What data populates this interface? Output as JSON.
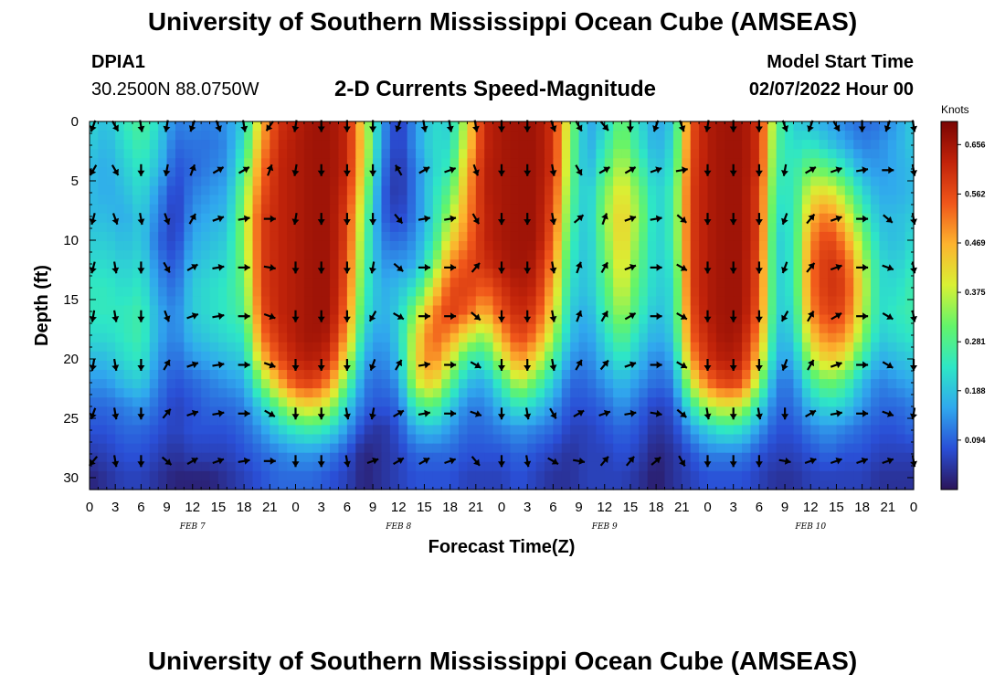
{
  "header": {
    "title": "University of Southern Mississippi Ocean Cube (AMSEAS)",
    "station_id": "DPIA1",
    "coordinates": "30.2500N  88.0750W",
    "subtitle": "2-D Currents Speed-Magnitude",
    "start_time_label": "Model Start Time",
    "start_time_value": "02/07/2022 Hour 00"
  },
  "footer": {
    "title": "University of Southern Mississippi Ocean Cube (AMSEAS)"
  },
  "chart_data": {
    "type": "heatmap",
    "title": "2-D Currents Speed-Magnitude",
    "xlabel": "Forecast Time(Z)",
    "ylabel": "Depth (ft)",
    "x_hours_range": [
      0,
      96
    ],
    "y_range_ft": [
      0,
      31
    ],
    "x_tick_labels": [
      "0",
      "3",
      "6",
      "9",
      "12",
      "15",
      "18",
      "21",
      "0",
      "3",
      "6",
      "9",
      "12",
      "15",
      "18",
      "21",
      "0",
      "3",
      "6",
      "9",
      "12",
      "15",
      "18",
      "21",
      "0",
      "3",
      "6",
      "9",
      "12",
      "15",
      "18",
      "21",
      "0"
    ],
    "y_ticks": [
      0,
      5,
      10,
      15,
      20,
      25,
      30
    ],
    "date_labels": [
      {
        "label": "FEB 7",
        "hour": 12
      },
      {
        "label": "FEB 8",
        "hour": 36
      },
      {
        "label": "FEB 9",
        "hour": 60
      },
      {
        "label": "FEB 10",
        "hour": 84
      }
    ],
    "colorbar": {
      "title": "Knots",
      "min": 0.0,
      "max": 0.7,
      "tick_labels": [
        "0.656",
        "0.562",
        "0.469",
        "0.375",
        "0.281",
        "0.188",
        "0.094"
      ],
      "colors": [
        "#2b1459",
        "#2a4fd6",
        "#30a8ee",
        "#2ee6c6",
        "#63f46a",
        "#d9f034",
        "#fdb32e",
        "#f0561a",
        "#c1230a",
        "#7a0403"
      ]
    },
    "time_hours": [
      0,
      2,
      4,
      6,
      8,
      10,
      12,
      14,
      16,
      18,
      20,
      22,
      24,
      26,
      28,
      30,
      32,
      34,
      36,
      38,
      40,
      42,
      44,
      46,
      48,
      50,
      52,
      54,
      56,
      58,
      60,
      62,
      64,
      66,
      68,
      70,
      72,
      74,
      76,
      78,
      80,
      82,
      84,
      86,
      88,
      90,
      92,
      94,
      96
    ],
    "depth_ft": [
      0,
      2,
      4,
      6,
      8,
      10,
      12,
      14,
      16,
      18,
      20,
      22,
      24,
      26,
      28,
      30
    ],
    "speed_knots": [
      [
        0.22,
        0.18,
        0.24,
        0.28,
        0.22,
        0.12,
        0.13,
        0.12,
        0.14,
        0.2,
        0.45,
        0.6,
        0.63,
        0.66,
        0.66,
        0.62,
        0.4,
        0.15,
        0.05,
        0.14,
        0.22,
        0.2,
        0.4,
        0.62,
        0.65,
        0.66,
        0.66,
        0.6,
        0.35,
        0.15,
        0.2,
        0.32,
        0.22,
        0.15,
        0.2,
        0.55,
        0.64,
        0.66,
        0.66,
        0.6,
        0.3,
        0.2,
        0.18,
        0.15,
        0.12,
        0.1,
        0.11,
        0.15,
        0.2
      ],
      [
        0.2,
        0.17,
        0.22,
        0.26,
        0.2,
        0.1,
        0.11,
        0.11,
        0.13,
        0.24,
        0.48,
        0.61,
        0.64,
        0.66,
        0.66,
        0.62,
        0.42,
        0.14,
        0.05,
        0.14,
        0.22,
        0.22,
        0.42,
        0.62,
        0.65,
        0.66,
        0.66,
        0.6,
        0.33,
        0.15,
        0.24,
        0.34,
        0.24,
        0.16,
        0.22,
        0.56,
        0.64,
        0.66,
        0.66,
        0.6,
        0.28,
        0.22,
        0.24,
        0.2,
        0.16,
        0.12,
        0.13,
        0.16,
        0.2
      ],
      [
        0.18,
        0.16,
        0.2,
        0.24,
        0.18,
        0.08,
        0.1,
        0.12,
        0.14,
        0.28,
        0.52,
        0.62,
        0.64,
        0.66,
        0.66,
        0.62,
        0.4,
        0.12,
        0.04,
        0.12,
        0.21,
        0.25,
        0.46,
        0.63,
        0.65,
        0.66,
        0.66,
        0.6,
        0.32,
        0.16,
        0.28,
        0.38,
        0.28,
        0.18,
        0.24,
        0.57,
        0.64,
        0.66,
        0.66,
        0.6,
        0.26,
        0.24,
        0.32,
        0.3,
        0.24,
        0.16,
        0.14,
        0.16,
        0.18
      ],
      [
        0.18,
        0.16,
        0.18,
        0.22,
        0.14,
        0.06,
        0.12,
        0.14,
        0.16,
        0.32,
        0.55,
        0.62,
        0.64,
        0.66,
        0.66,
        0.6,
        0.36,
        0.1,
        0.04,
        0.12,
        0.22,
        0.3,
        0.48,
        0.63,
        0.65,
        0.66,
        0.66,
        0.58,
        0.3,
        0.18,
        0.32,
        0.42,
        0.32,
        0.2,
        0.26,
        0.58,
        0.64,
        0.66,
        0.66,
        0.58,
        0.24,
        0.24,
        0.4,
        0.42,
        0.34,
        0.22,
        0.16,
        0.16,
        0.18
      ],
      [
        0.18,
        0.18,
        0.16,
        0.2,
        0.12,
        0.05,
        0.14,
        0.16,
        0.18,
        0.34,
        0.58,
        0.62,
        0.64,
        0.66,
        0.66,
        0.58,
        0.32,
        0.1,
        0.06,
        0.12,
        0.22,
        0.36,
        0.5,
        0.62,
        0.65,
        0.66,
        0.66,
        0.56,
        0.28,
        0.18,
        0.34,
        0.44,
        0.34,
        0.2,
        0.26,
        0.58,
        0.64,
        0.66,
        0.66,
        0.58,
        0.22,
        0.24,
        0.46,
        0.52,
        0.42,
        0.28,
        0.18,
        0.18,
        0.2
      ],
      [
        0.2,
        0.2,
        0.18,
        0.2,
        0.1,
        0.06,
        0.16,
        0.18,
        0.2,
        0.34,
        0.58,
        0.62,
        0.64,
        0.66,
        0.66,
        0.58,
        0.3,
        0.12,
        0.1,
        0.14,
        0.24,
        0.42,
        0.52,
        0.62,
        0.65,
        0.66,
        0.66,
        0.54,
        0.26,
        0.18,
        0.32,
        0.44,
        0.32,
        0.2,
        0.26,
        0.58,
        0.64,
        0.66,
        0.66,
        0.58,
        0.2,
        0.24,
        0.5,
        0.58,
        0.5,
        0.34,
        0.2,
        0.18,
        0.22
      ],
      [
        0.22,
        0.22,
        0.2,
        0.22,
        0.12,
        0.08,
        0.18,
        0.2,
        0.22,
        0.32,
        0.58,
        0.62,
        0.64,
        0.66,
        0.66,
        0.56,
        0.28,
        0.14,
        0.14,
        0.16,
        0.3,
        0.5,
        0.56,
        0.6,
        0.64,
        0.66,
        0.64,
        0.5,
        0.24,
        0.18,
        0.3,
        0.42,
        0.3,
        0.2,
        0.24,
        0.58,
        0.64,
        0.66,
        0.66,
        0.56,
        0.2,
        0.24,
        0.52,
        0.6,
        0.56,
        0.38,
        0.22,
        0.2,
        0.24
      ],
      [
        0.24,
        0.24,
        0.22,
        0.24,
        0.14,
        0.1,
        0.2,
        0.22,
        0.24,
        0.3,
        0.58,
        0.62,
        0.64,
        0.66,
        0.66,
        0.55,
        0.26,
        0.16,
        0.18,
        0.24,
        0.4,
        0.56,
        0.58,
        0.54,
        0.6,
        0.64,
        0.62,
        0.46,
        0.22,
        0.18,
        0.28,
        0.4,
        0.28,
        0.2,
        0.22,
        0.58,
        0.64,
        0.66,
        0.66,
        0.56,
        0.2,
        0.24,
        0.52,
        0.6,
        0.58,
        0.4,
        0.22,
        0.22,
        0.26
      ],
      [
        0.24,
        0.24,
        0.24,
        0.26,
        0.16,
        0.12,
        0.2,
        0.22,
        0.24,
        0.28,
        0.56,
        0.62,
        0.64,
        0.66,
        0.66,
        0.52,
        0.24,
        0.16,
        0.2,
        0.34,
        0.5,
        0.58,
        0.54,
        0.46,
        0.56,
        0.62,
        0.58,
        0.42,
        0.2,
        0.16,
        0.26,
        0.36,
        0.26,
        0.18,
        0.22,
        0.56,
        0.64,
        0.66,
        0.66,
        0.54,
        0.2,
        0.22,
        0.5,
        0.58,
        0.56,
        0.38,
        0.22,
        0.24,
        0.26
      ],
      [
        0.22,
        0.22,
        0.24,
        0.26,
        0.16,
        0.12,
        0.18,
        0.2,
        0.22,
        0.24,
        0.52,
        0.6,
        0.64,
        0.66,
        0.64,
        0.48,
        0.2,
        0.14,
        0.2,
        0.4,
        0.54,
        0.5,
        0.4,
        0.34,
        0.48,
        0.58,
        0.52,
        0.36,
        0.18,
        0.14,
        0.22,
        0.3,
        0.22,
        0.16,
        0.2,
        0.54,
        0.62,
        0.66,
        0.64,
        0.5,
        0.18,
        0.2,
        0.44,
        0.52,
        0.5,
        0.34,
        0.2,
        0.22,
        0.24
      ],
      [
        0.18,
        0.18,
        0.22,
        0.24,
        0.14,
        0.1,
        0.14,
        0.16,
        0.18,
        0.2,
        0.44,
        0.56,
        0.62,
        0.64,
        0.6,
        0.4,
        0.16,
        0.12,
        0.18,
        0.42,
        0.52,
        0.4,
        0.26,
        0.24,
        0.38,
        0.5,
        0.42,
        0.28,
        0.14,
        0.12,
        0.18,
        0.24,
        0.18,
        0.12,
        0.16,
        0.48,
        0.6,
        0.64,
        0.62,
        0.44,
        0.16,
        0.16,
        0.36,
        0.44,
        0.4,
        0.26,
        0.16,
        0.18,
        0.2
      ],
      [
        0.14,
        0.14,
        0.18,
        0.2,
        0.12,
        0.08,
        0.1,
        0.12,
        0.14,
        0.16,
        0.32,
        0.46,
        0.56,
        0.58,
        0.5,
        0.3,
        0.12,
        0.1,
        0.14,
        0.38,
        0.44,
        0.3,
        0.18,
        0.16,
        0.26,
        0.38,
        0.3,
        0.2,
        0.1,
        0.1,
        0.14,
        0.18,
        0.14,
        0.1,
        0.12,
        0.38,
        0.52,
        0.58,
        0.56,
        0.34,
        0.12,
        0.12,
        0.26,
        0.32,
        0.28,
        0.18,
        0.12,
        0.14,
        0.16
      ],
      [
        0.1,
        0.1,
        0.12,
        0.14,
        0.1,
        0.06,
        0.08,
        0.1,
        0.1,
        0.12,
        0.2,
        0.3,
        0.4,
        0.42,
        0.36,
        0.2,
        0.1,
        0.08,
        0.1,
        0.26,
        0.3,
        0.2,
        0.12,
        0.12,
        0.18,
        0.24,
        0.2,
        0.14,
        0.08,
        0.08,
        0.1,
        0.14,
        0.1,
        0.06,
        0.08,
        0.24,
        0.36,
        0.4,
        0.38,
        0.22,
        0.1,
        0.1,
        0.18,
        0.22,
        0.2,
        0.14,
        0.1,
        0.1,
        0.12
      ],
      [
        0.08,
        0.08,
        0.1,
        0.1,
        0.08,
        0.06,
        0.08,
        0.08,
        0.08,
        0.1,
        0.14,
        0.2,
        0.24,
        0.26,
        0.22,
        0.14,
        0.06,
        0.04,
        0.08,
        0.16,
        0.18,
        0.14,
        0.1,
        0.1,
        0.12,
        0.14,
        0.12,
        0.1,
        0.06,
        0.06,
        0.08,
        0.1,
        0.08,
        0.04,
        0.06,
        0.14,
        0.2,
        0.24,
        0.22,
        0.14,
        0.08,
        0.08,
        0.12,
        0.14,
        0.12,
        0.1,
        0.08,
        0.08,
        0.1
      ],
      [
        0.05,
        0.06,
        0.08,
        0.08,
        0.06,
        0.04,
        0.06,
        0.06,
        0.06,
        0.08,
        0.1,
        0.12,
        0.14,
        0.14,
        0.12,
        0.08,
        0.02,
        0.04,
        0.06,
        0.1,
        0.1,
        0.1,
        0.08,
        0.08,
        0.08,
        0.1,
        0.08,
        0.06,
        0.04,
        0.06,
        0.06,
        0.08,
        0.06,
        0.02,
        0.04,
        0.08,
        0.12,
        0.12,
        0.12,
        0.08,
        0.06,
        0.06,
        0.08,
        0.1,
        0.08,
        0.08,
        0.06,
        0.06,
        0.06
      ],
      [
        0.02,
        0.04,
        0.06,
        0.06,
        0.04,
        0.02,
        0.02,
        0.02,
        0.04,
        0.06,
        0.08,
        0.1,
        0.1,
        0.1,
        0.08,
        0.06,
        0.02,
        0.04,
        0.06,
        0.08,
        0.08,
        0.08,
        0.06,
        0.06,
        0.06,
        0.08,
        0.06,
        0.04,
        0.04,
        0.06,
        0.06,
        0.06,
        0.04,
        0.01,
        0.04,
        0.06,
        0.08,
        0.08,
        0.08,
        0.06,
        0.04,
        0.04,
        0.06,
        0.06,
        0.06,
        0.06,
        0.04,
        0.04,
        0.04
      ]
    ],
    "vector_depths_ft": [
      0,
      4.1,
      8.2,
      12.3,
      16.4,
      20.5,
      24.6,
      28.6
    ],
    "vector_hours": [
      0,
      3,
      6,
      9,
      12,
      15,
      18,
      21,
      24,
      27,
      30,
      33,
      36,
      39,
      42,
      45,
      48,
      51,
      54,
      57,
      60,
      63,
      66,
      69,
      72,
      75,
      78,
      81,
      84,
      87,
      90,
      93,
      96
    ],
    "vector_dir_deg": [
      [
        200,
        150,
        170,
        190,
        200,
        160,
        170,
        215,
        190,
        180,
        180,
        180,
        200,
        170,
        170,
        170,
        180,
        180,
        160,
        150,
        140,
        180,
        200,
        160,
        190,
        180,
        180,
        160,
        200,
        150,
        180,
        200,
        170
      ],
      [
        210,
        150,
        180,
        190,
        20,
        60,
        60,
        20,
        190,
        180,
        180,
        180,
        330,
        60,
        70,
        160,
        180,
        180,
        170,
        150,
        60,
        60,
        70,
        80,
        180,
        180,
        180,
        190,
        60,
        70,
        80,
        90,
        170
      ],
      [
        195,
        160,
        170,
        160,
        30,
        70,
        80,
        90,
        190,
        180,
        180,
        180,
        140,
        80,
        80,
        150,
        180,
        180,
        170,
        50,
        20,
        70,
        80,
        130,
        180,
        180,
        180,
        200,
        40,
        70,
        90,
        130,
        170
      ],
      [
        195,
        170,
        180,
        150,
        60,
        80,
        90,
        100,
        180,
        180,
        180,
        190,
        130,
        90,
        90,
        40,
        180,
        180,
        170,
        20,
        30,
        70,
        90,
        120,
        180,
        180,
        180,
        200,
        40,
        70,
        90,
        110,
        170
      ],
      [
        190,
        170,
        180,
        160,
        70,
        80,
        90,
        110,
        180,
        180,
        180,
        210,
        120,
        90,
        90,
        130,
        180,
        180,
        170,
        20,
        30,
        60,
        90,
        120,
        180,
        180,
        180,
        210,
        30,
        60,
        90,
        120,
        170
      ],
      [
        190,
        170,
        180,
        30,
        70,
        80,
        90,
        110,
        180,
        180,
        180,
        200,
        30,
        80,
        90,
        120,
        180,
        180,
        170,
        30,
        40,
        70,
        90,
        120,
        180,
        180,
        180,
        200,
        30,
        70,
        90,
        120,
        180
      ],
      [
        200,
        170,
        180,
        40,
        70,
        80,
        90,
        120,
        180,
        180,
        170,
        190,
        60,
        80,
        90,
        110,
        180,
        170,
        150,
        60,
        70,
        80,
        100,
        130,
        170,
        180,
        170,
        180,
        60,
        80,
        90,
        110,
        190
      ],
      [
        220,
        170,
        180,
        130,
        60,
        70,
        80,
        90,
        180,
        180,
        170,
        70,
        60,
        60,
        70,
        140,
        180,
        170,
        120,
        100,
        40,
        40,
        50,
        150,
        180,
        180,
        180,
        100,
        70,
        70,
        70,
        70,
        170
      ]
    ]
  }
}
